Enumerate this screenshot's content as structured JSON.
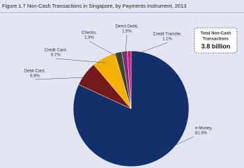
{
  "chart_data": {
    "type": "pie",
    "title": "Figure 1.7   Non-Cash Transactions in Singapore, by Payments Instrument, 2013",
    "categories": [
      "e-Money,",
      "Debit Card,",
      "Credit Card,",
      "Checks,",
      "Direct Debit,",
      "Credit Transfer,"
    ],
    "values": [
      81.9,
      6.9,
      6.7,
      1.9,
      1.5,
      1.1
    ],
    "value_labels": [
      "81.9%",
      "6.9%",
      "6.7%",
      "1.9%",
      "1.5%",
      "1.1%"
    ],
    "colors": [
      "#13306b",
      "#76191a",
      "#f4b100",
      "#3b452a",
      "#7c2b7d",
      "#d8197f"
    ],
    "annotation": {
      "lines": [
        "Total Non-Cash",
        "Transactions"
      ],
      "total": "3.8 billion"
    }
  }
}
